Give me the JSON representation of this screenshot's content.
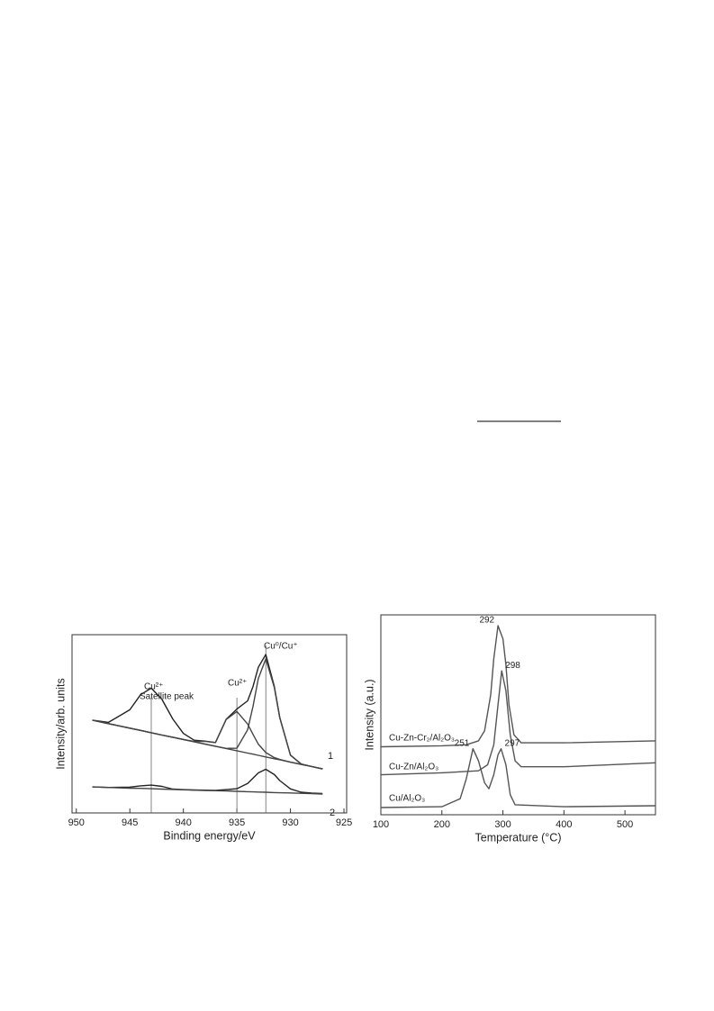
{
  "chart_data": [
    {
      "type": "line",
      "xlabel": "Binding energy/eV",
      "ylabel": "Intensity/arb. units",
      "xlim": [
        950.4,
        924.75
      ],
      "xticks": [
        950,
        945,
        940,
        935,
        930,
        925
      ],
      "ylim": [
        0,
        100
      ],
      "reference_lines": [
        943,
        935,
        932.3
      ],
      "annotations": [
        "Cu²⁺",
        "Satellite peak",
        "Cu²⁺",
        "Cu⁰/Cu⁺"
      ],
      "x": [
        948.5,
        947,
        945,
        944,
        943,
        942,
        941,
        940,
        939,
        938,
        937,
        936,
        935,
        934,
        933.5,
        933,
        932.3,
        931.5,
        931,
        930,
        929,
        928,
        927
      ],
      "series": [
        {
          "label": "1",
          "color": "#222",
          "values": [
            52,
            50.8,
            57.9,
            66.3,
            70,
            63.7,
            52.8,
            44.6,
            40.8,
            40.3,
            39.5,
            52.5,
            58.3,
            62.9,
            70.9,
            81.7,
            88.9,
            70.9,
            53.6,
            32.4,
            27.4,
            26,
            24.7
          ]
        },
        {
          "color": "#444",
          "values": [
            52,
            50.1,
            47.6,
            46.3,
            45,
            43.7,
            42.5,
            41.2,
            39.9,
            38.7,
            37.4,
            36.1,
            34.9,
            33.6,
            33,
            32.3,
            31.4,
            30.4,
            29.8,
            28.5,
            27.2,
            26,
            24.7
          ]
        },
        {
          "color": "#444",
          "values": [
            52,
            50.1,
            47.6,
            46.3,
            45,
            43.7,
            42.5,
            41.2,
            40.1,
            40.2,
            39.5,
            52.4,
            56.9,
            49.9,
            44.1,
            38.6,
            33.9,
            31,
            30,
            28.5,
            27.2,
            26,
            24.7
          ]
        },
        {
          "color": "#444",
          "values": [
            52,
            50.1,
            47.6,
            46.3,
            45,
            43.7,
            42.5,
            41.2,
            39.9,
            38.7,
            37.4,
            36.2,
            36.3,
            46.6,
            59.8,
            75.4,
            86.4,
            70.3,
            53.4,
            32.4,
            27.4,
            26,
            24.7
          ]
        },
        {
          "label": "2",
          "color": "#222",
          "values": [
            14.6,
            14.3,
            14.5,
            15.2,
            15.6,
            14.9,
            13.4,
            13.1,
            12.9,
            12.8,
            12.7,
            13.1,
            13.6,
            16.5,
            19.5,
            22.5,
            24.5,
            21.5,
            18.2,
            13.5,
            11.6,
            11.1,
            10.9
          ]
        },
        {
          "color": "#444",
          "values": [
            14.6,
            14.3,
            13.9,
            13.8,
            13.6,
            13.4,
            13.2,
            13,
            12.8,
            12.6,
            12.5,
            12.3,
            12.1,
            11.9,
            11.8,
            11.7,
            11.6,
            11.4,
            11.3,
            11.2,
            11,
            10.8,
            10.6
          ]
        }
      ]
    },
    {
      "type": "line",
      "xlabel": "Temperature (°C)",
      "ylabel": "Intensity (a.u.)",
      "xlim": [
        100,
        550
      ],
      "xticks": [
        100,
        200,
        300,
        400,
        500
      ],
      "ylim": [
        0,
        100
      ],
      "series": [
        {
          "label": "Cu-Zn-Cr₂/Al₂O₃",
          "color": "#555",
          "peaks": [
            292
          ],
          "x": [
            100,
            200,
            240,
            260,
            270,
            280,
            285,
            292,
            300,
            305,
            310,
            318,
            330,
            400,
            550
          ],
          "values": [
            34,
            34.5,
            35,
            37,
            42,
            60,
            78,
            94.6,
            88,
            75,
            55,
            40,
            36,
            36,
            37
          ]
        },
        {
          "label": "Cu-Zn/Al₂O₃",
          "color": "#555",
          "peaks": [
            298
          ],
          "x": [
            100,
            200,
            260,
            275,
            285,
            292,
            298,
            305,
            312,
            320,
            330,
            400,
            550
          ],
          "values": [
            20,
            21,
            22,
            25,
            35,
            55,
            72,
            62,
            40,
            27,
            24,
            24,
            26
          ]
        },
        {
          "label": "Cu/Al₂O₃",
          "color": "#555",
          "peaks": [
            251,
            297
          ],
          "x": [
            100,
            200,
            230,
            240,
            251,
            260,
            270,
            277,
            285,
            292,
            297,
            305,
            312,
            320,
            400,
            550
          ],
          "values": [
            3.6,
            4,
            8,
            18,
            33,
            27,
            16,
            13,
            20,
            30,
            33,
            25,
            10,
            5,
            4,
            4.5
          ]
        }
      ]
    }
  ]
}
